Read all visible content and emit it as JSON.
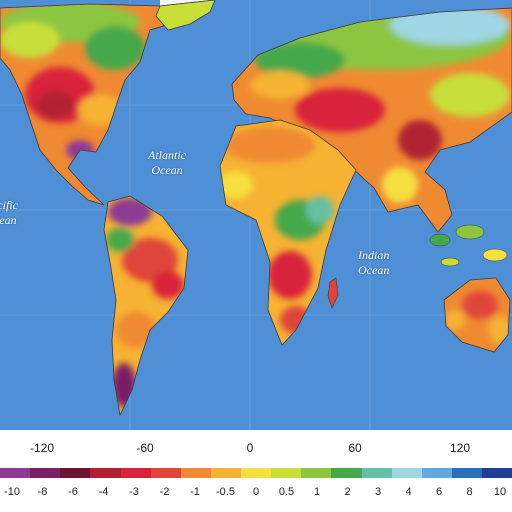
{
  "ocean_labels": {
    "atlantic": "Atlantic\nOcean",
    "pacific": "Pacific\nOcean",
    "indian": "Indian\nOcean"
  },
  "longitude_labels": [
    "-120",
    "-60",
    "0",
    "60",
    "120"
  ],
  "legend": {
    "values": [
      "-10",
      "-8",
      "-6",
      "-4",
      "-3",
      "-2",
      "-1",
      "-0.5",
      "0",
      "0.5",
      "1",
      "2",
      "3",
      "4",
      "6",
      "8",
      "10"
    ],
    "colors": [
      "#8e3a93",
      "#7a1f6a",
      "#6b1432",
      "#b02030",
      "#d9233a",
      "#e0443a",
      "#f08a32",
      "#f6b232",
      "#f6e040",
      "#c8df3a",
      "#8cc63f",
      "#45a84b",
      "#68c0a4",
      "#9fd6e4",
      "#63a9df",
      "#2a6fba",
      "#1e3f94"
    ]
  },
  "colors": {
    "ocean": "#4f8fd6",
    "sea_ice": "#f4f6f6",
    "border_lines": "#3a3a3a"
  }
}
